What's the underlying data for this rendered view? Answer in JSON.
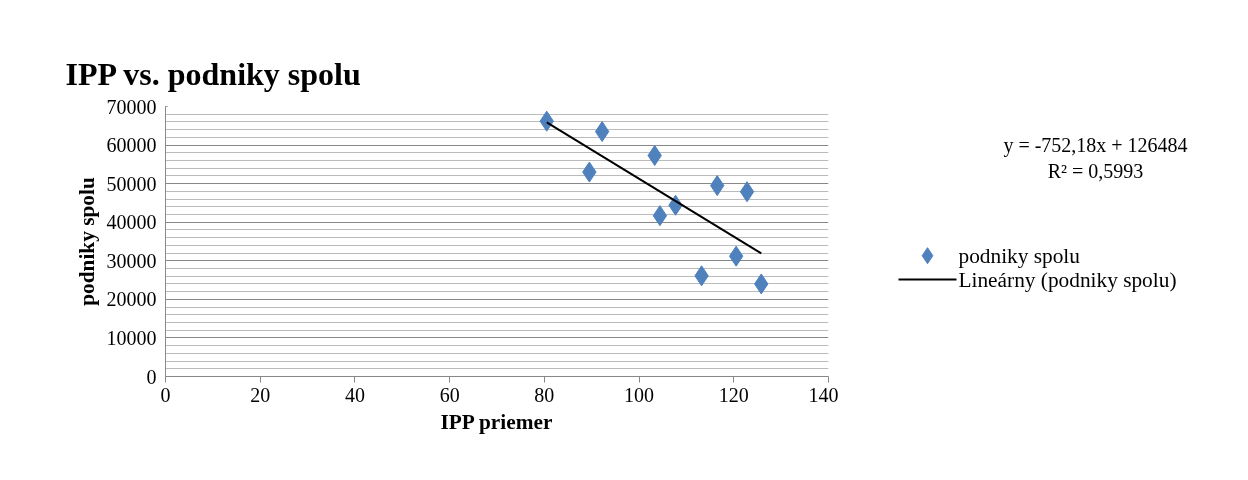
{
  "chart_data": {
    "type": "scatter",
    "title": "IPP vs. podniky spolu",
    "xlabel": "IPP priemer",
    "ylabel": "podniky spolu",
    "x": [
      80.5,
      92.2,
      103.3,
      89.5,
      116.5,
      122.8,
      107.7,
      104.4,
      120.5,
      113.2,
      125.8
    ],
    "series": [
      {
        "name": "podniky spolu",
        "color": "#4f81bd",
        "marker": "diamond",
        "values": [
          66200,
          63500,
          57300,
          53000,
          49500,
          47900,
          44400,
          41700,
          31200,
          26100,
          24000
        ]
      },
      {
        "name": "Lineárny (podniky spolu)",
        "type": "line",
        "color": "#000000",
        "marker": "none",
        "x": [
          80.5,
          125.8
        ],
        "values": [
          65900,
          31900
        ]
      }
    ],
    "annotations": [
      "y = -752,18x + 126484",
      "R² = 0,5993"
    ],
    "xlim": [
      0,
      140
    ],
    "xticks": [
      0,
      20,
      40,
      60,
      80,
      100,
      120,
      140
    ],
    "ylim": [
      0,
      70000
    ],
    "yticks": [
      0,
      10000,
      20000,
      30000,
      40000,
      50000,
      60000,
      70000
    ],
    "grid": "y",
    "legend": "right"
  }
}
